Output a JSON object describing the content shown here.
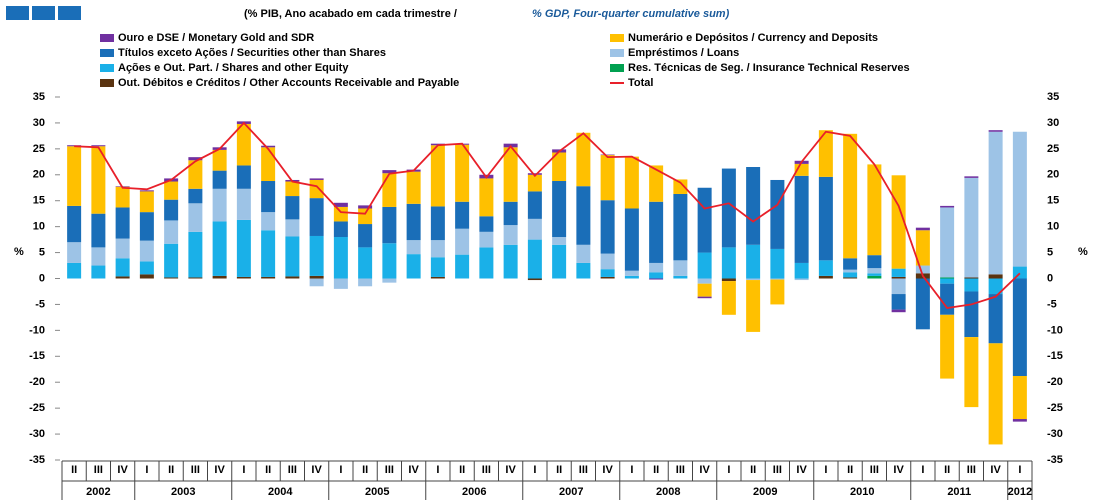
{
  "chart_data": {
    "type": "bar",
    "title": "(% PIB, Ano acabado em cada trimestre  /",
    "subtitle": "% GDP, Four-quarter cumulative sum)",
    "y_label": "%",
    "categories": [
      "II",
      "III",
      "IV",
      "I",
      "II",
      "III",
      "IV",
      "I",
      "II",
      "III",
      "IV",
      "I",
      "II",
      "III",
      "IV",
      "I",
      "II",
      "III",
      "IV",
      "I",
      "II",
      "III",
      "IV",
      "I",
      "II",
      "III",
      "IV",
      "I",
      "II",
      "III",
      "IV",
      "I",
      "II",
      "III",
      "IV",
      "I",
      "II",
      "III",
      "IV",
      "I"
    ],
    "years": [
      "2002",
      "2003",
      "2004",
      "2005",
      "2006",
      "2007",
      "2008",
      "2009",
      "2010",
      "2011",
      "2012"
    ],
    "ylim": [
      -35,
      35
    ],
    "yticks": [
      -35,
      -30,
      -25,
      -20,
      -15,
      -10,
      -5,
      0,
      5,
      10,
      15,
      20,
      25,
      30,
      35
    ],
    "stacked": true,
    "series": [
      {
        "name": "Out. Débitos e Créditos / Other Accounts Receivable and Payable",
        "color": "#5a3310",
        "values": [
          0,
          0,
          0.4,
          0.8,
          0.2,
          0.2,
          0.5,
          0.3,
          0.3,
          0.4,
          0.5,
          0,
          0,
          0,
          0,
          0.3,
          0,
          0,
          0,
          -0.3,
          0,
          0,
          0.3,
          0,
          0,
          0,
          0,
          -0.5,
          0,
          0,
          0,
          0.5,
          0.2,
          0,
          0.3,
          1,
          0,
          0.2,
          0.8,
          0
        ]
      },
      {
        "name": "Res. Técnicas de Seg. / Insurance Technical Reserves",
        "color": "#00a050",
        "values": [
          0,
          0,
          0,
          0,
          0,
          0,
          0,
          0,
          0,
          0,
          0,
          0,
          0,
          0,
          0,
          0,
          0,
          0,
          0,
          0,
          0,
          0,
          0,
          0,
          0,
          0,
          0,
          0,
          0,
          0,
          0,
          0,
          0,
          0.5,
          0,
          0,
          0.2,
          0,
          0,
          0
        ]
      },
      {
        "name": "Ações e Out. Part. / Shares and other Equity",
        "color": "#1ab0e8",
        "values": [
          3,
          2.5,
          3.5,
          2.5,
          6.5,
          8.8,
          10.5,
          11,
          9,
          7.7,
          7.7,
          8,
          6,
          6.8,
          4.7,
          3.8,
          4.6,
          6,
          6.5,
          7.5,
          6.5,
          3,
          1.5,
          0.5,
          1.2,
          0.5,
          5,
          6,
          6.5,
          5.7,
          3,
          3,
          1,
          0.5,
          1.6,
          0,
          -1,
          -2.5,
          -3,
          2.3
        ]
      },
      {
        "name": "Empréstimos / Loans",
        "color": "#9dc3e6",
        "values": [
          4,
          3.5,
          3.8,
          4,
          4.5,
          5.5,
          6.3,
          6,
          3.5,
          3.3,
          -1.5,
          -2,
          -1.5,
          -0.8,
          2.7,
          3.3,
          5,
          3,
          3.8,
          4,
          1.5,
          3.5,
          3,
          1,
          1.8,
          3,
          -1,
          0,
          -0.3,
          -0.2,
          -0.3,
          0,
          0.5,
          1,
          -3,
          1.5,
          13.5,
          19.2,
          27.5,
          26
        ]
      },
      {
        "name": "Títulos exceto Ações / Securities other than Shares",
        "color": "#1a6eb8",
        "values": [
          7,
          6.5,
          6,
          5.5,
          4,
          2.8,
          3.5,
          4.5,
          6,
          4.5,
          7.3,
          3,
          4.5,
          7,
          7,
          6.5,
          5.2,
          3,
          4.5,
          5.3,
          10.8,
          11.3,
          10.3,
          12,
          11.8,
          12.8,
          12.5,
          15.2,
          15,
          13.3,
          16.8,
          16.1,
          2.2,
          2.5,
          -3,
          -9.8,
          -6,
          -8.8,
          -9.5,
          -18.8
        ]
      },
      {
        "name": "Numerário e Depósitos / Currency and Deposits",
        "color": "#ffc000",
        "values": [
          11.5,
          13,
          4,
          4,
          3.5,
          5.5,
          4,
          8,
          6.5,
          2.8,
          3.5,
          2.8,
          3,
          6.5,
          6.2,
          11.8,
          11,
          7.3,
          10.5,
          3.2,
          5.5,
          10.3,
          8.7,
          10,
          7,
          2.8,
          -2.5,
          -6.5,
          -10,
          -4.8,
          2.3,
          9,
          24,
          17.5,
          18,
          6.8,
          -12.3,
          -13.5,
          -19.5,
          -8.3
        ]
      },
      {
        "name": "Ouro e DSE / Monetary Gold and SDR",
        "color": "#7030a0",
        "values": [
          0.2,
          0.2,
          0.1,
          0.2,
          0.6,
          0.6,
          0.5,
          0.5,
          0.3,
          0.3,
          0.3,
          0.8,
          0.6,
          0.6,
          0.4,
          0.3,
          0.2,
          0.7,
          0.7,
          0.3,
          0.6,
          0,
          0.1,
          0,
          -0.2,
          0,
          -0.3,
          0,
          0,
          0,
          0.6,
          0,
          0,
          0,
          -0.5,
          0.5,
          0.3,
          0.3,
          0.3,
          -0.5
        ]
      },
      {
        "name": "Total",
        "type": "line",
        "color": "#e8202a",
        "values": [
          25.5,
          25.3,
          17.5,
          17.2,
          19,
          22.6,
          25,
          30,
          25,
          18.7,
          17.8,
          12.8,
          12.5,
          20.2,
          20.8,
          25.7,
          26,
          19.5,
          25.5,
          19.8,
          24.5,
          28,
          23.4,
          23.5,
          21,
          18.5,
          13.5,
          14.5,
          11,
          14.2,
          22.5,
          28.3,
          27.5,
          22,
          14,
          0.5,
          -5.7,
          -5,
          -3.5,
          1
        ]
      }
    ]
  }
}
